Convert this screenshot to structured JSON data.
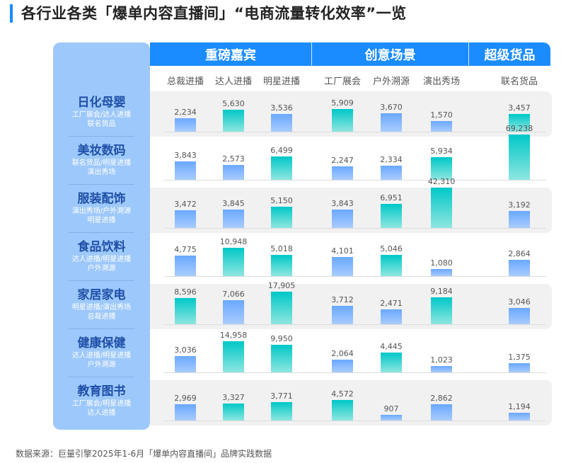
{
  "title": "各行业各类「爆单内容直播间」“电商流量转化效率”一览",
  "footer": "数据来源：巨量引擎2025年1-6月「爆单内容直播间」品牌实践数据",
  "colors": {
    "header": "#1a8cff",
    "panel": "#9dc8fb",
    "highlight": "#00c8c8",
    "normal": "#6aa8ff"
  },
  "chart_data": {
    "type": "bar",
    "groups": [
      {
        "name": "重磅嘉宾",
        "columns": [
          "总裁进播",
          "达人进播",
          "明星进播"
        ]
      },
      {
        "name": "创意场景",
        "columns": [
          "工厂展会",
          "户外溯源",
          "演出秀场"
        ]
      },
      {
        "name": "超级货品",
        "columns": [
          "联名货品"
        ]
      }
    ],
    "categories": [
      "总裁进播",
      "达人进播",
      "明星进播",
      "工厂展会",
      "户外溯源",
      "演出秀场",
      "联名货品"
    ],
    "rows": [
      {
        "name": "日化母婴",
        "sub1": "工厂展会/达人进播",
        "sub2": "联名货品",
        "values": [
          2234,
          5630,
          3536,
          5909,
          3670,
          1570,
          3457
        ],
        "highlight": [
          "达人进播",
          "工厂展会",
          "联名货品"
        ]
      },
      {
        "name": "美妆数码",
        "sub1": "联名货品/明星进播",
        "sub2": "演出秀场",
        "values": [
          3843,
          2573,
          6499,
          2247,
          2334,
          5934,
          69238
        ],
        "highlight": [
          "明星进播",
          "演出秀场",
          "联名货品"
        ]
      },
      {
        "name": "服装配饰",
        "sub1": "演出秀场/户外溯源",
        "sub2": "明星进播",
        "values": [
          3472,
          3845,
          5150,
          3843,
          6951,
          42310,
          3192
        ],
        "highlight": [
          "明星进播",
          "户外溯源",
          "演出秀场"
        ]
      },
      {
        "name": "食品饮料",
        "sub1": "达人进播/明星进播",
        "sub2": "户外溯源",
        "values": [
          4775,
          10948,
          5018,
          4101,
          5046,
          1080,
          2864
        ],
        "highlight": [
          "达人进播",
          "明星进播",
          "户外溯源"
        ]
      },
      {
        "name": "家居家电",
        "sub1": "明星进播/演出秀场",
        "sub2": "总裁进播",
        "values": [
          8596,
          7066,
          17905,
          3712,
          2471,
          9184,
          3046
        ],
        "highlight": [
          "总裁进播",
          "明星进播",
          "演出秀场"
        ]
      },
      {
        "name": "健康保健",
        "sub1": "达人进播/明星进播",
        "sub2": "户外溯源",
        "values": [
          3036,
          14958,
          9950,
          2064,
          4445,
          1023,
          1375
        ],
        "highlight": [
          "达人进播",
          "明星进播",
          "户外溯源"
        ]
      },
      {
        "name": "教育图书",
        "sub1": "工厂展会/明星进播",
        "sub2": "达人进播",
        "values": [
          2969,
          3327,
          3771,
          4572,
          907,
          2862,
          1194
        ],
        "highlight": [
          "达人进播",
          "明星进播",
          "工厂展会"
        ]
      }
    ]
  }
}
